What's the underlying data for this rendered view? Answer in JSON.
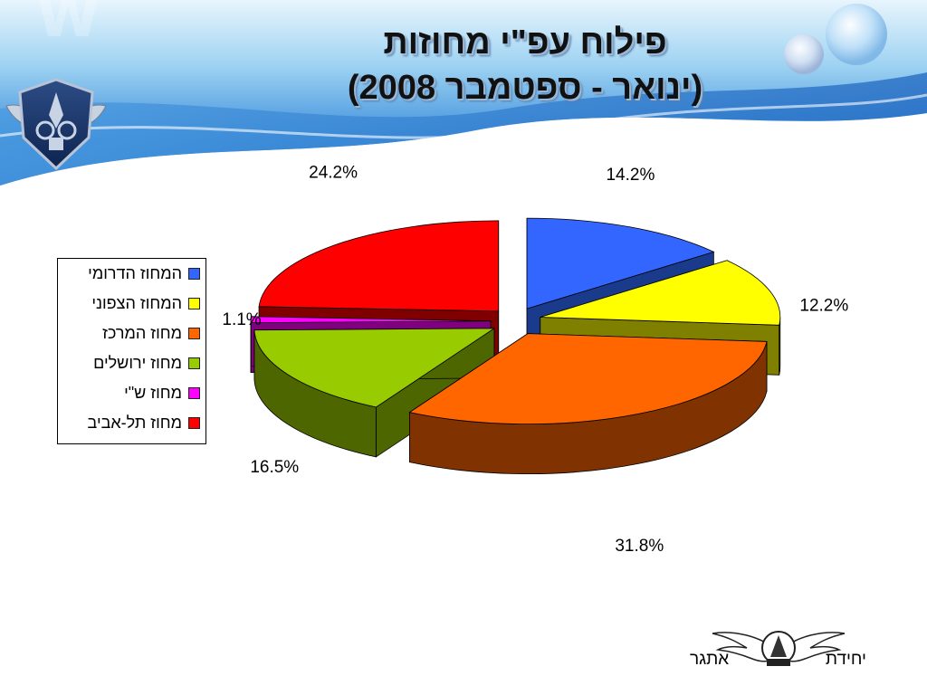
{
  "slide": {
    "title_line_1": "פילוח עפ\"י מחוזות",
    "title_line_2": "(ינואר - ספטמבר 2008)"
  },
  "chart_data": {
    "type": "pie",
    "style": "3d-exploded",
    "title": "פילוח עפ\"י מחוזות (ינואר - ספטמבר 2008)",
    "legend_placement": "left",
    "slices": [
      {
        "label": "המחוז הדרומי",
        "value": 14.2,
        "value_label": "14.2%",
        "color": "#3366ff",
        "side_color": "#1a3a8c"
      },
      {
        "label": "המחוז הצפוני",
        "value": 12.2,
        "value_label": "12.2%",
        "color": "#ffff00",
        "side_color": "#808000"
      },
      {
        "label": "מחוז המרכז",
        "value": 31.8,
        "value_label": "31.8%",
        "color": "#ff6600",
        "side_color": "#803300"
      },
      {
        "label": "מחוז ירושלים",
        "value": 16.5,
        "value_label": "16.5%",
        "color": "#99cc00",
        "side_color": "#4d6600"
      },
      {
        "label": "מחוז ש\"י",
        "value": 1.1,
        "value_label": "1.1%",
        "color": "#ff00ff",
        "side_color": "#800080"
      },
      {
        "label": "מחוז תל-אביב",
        "value": 24.2,
        "value_label": "24.2%",
        "color": "#ff0000",
        "side_color": "#800000"
      }
    ]
  },
  "footer": {
    "word_right": "יחידת",
    "word_left": "אתגר"
  },
  "colors": {
    "banner_blue": "#2f7fd8",
    "banner_light": "#bfe3f7"
  },
  "icons": {
    "top_logo": "police-emblem-icon",
    "bottom_logo": "winged-unit-emblem-icon"
  }
}
